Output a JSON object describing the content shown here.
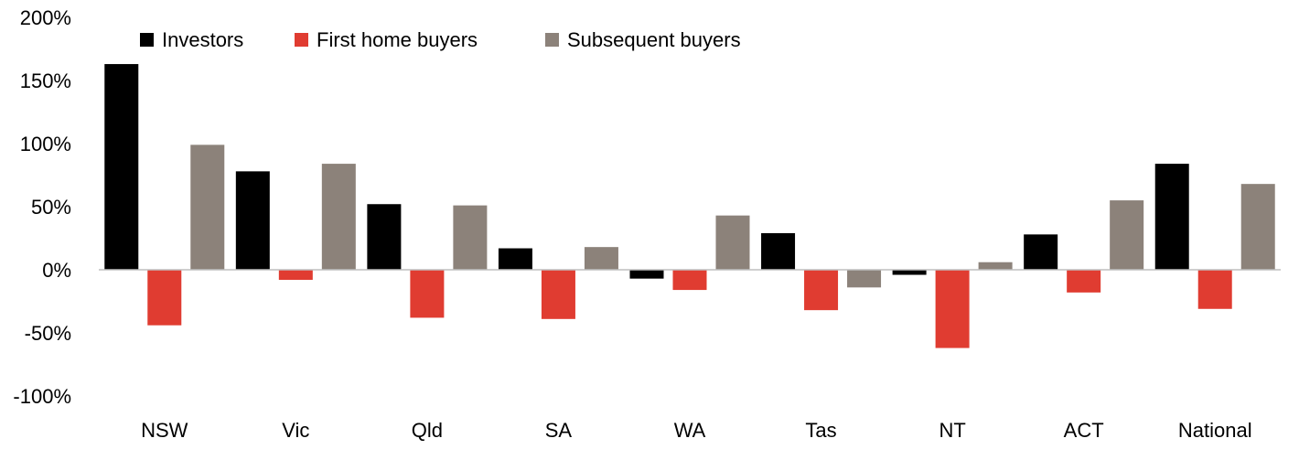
{
  "chart_data": {
    "type": "bar",
    "categories": [
      "NSW",
      "Vic",
      "Qld",
      "SA",
      "WA",
      "Tas",
      "NT",
      "ACT",
      "National"
    ],
    "series": [
      {
        "name": "Investors",
        "color": "#000000",
        "values": [
          163,
          78,
          52,
          17,
          -7,
          29,
          -4,
          28,
          84
        ]
      },
      {
        "name": "First home buyers",
        "color": "#e03c31",
        "values": [
          -44,
          -8,
          -38,
          -39,
          -16,
          -32,
          -62,
          -18,
          -31
        ]
      },
      {
        "name": "Subsequent buyers",
        "color": "#8c827a",
        "values": [
          99,
          84,
          51,
          18,
          43,
          -14,
          6,
          55,
          68
        ]
      }
    ],
    "ylim": [
      -100,
      200
    ],
    "yticks": [
      200,
      150,
      100,
      50,
      0,
      -50,
      -100
    ],
    "ytick_labels": [
      "200%",
      "150%",
      "100%",
      "50%",
      "0%",
      "-50%",
      "-100%"
    ],
    "xlabel": "",
    "ylabel": "",
    "title": "",
    "legend": "top-left",
    "grid": false
  }
}
